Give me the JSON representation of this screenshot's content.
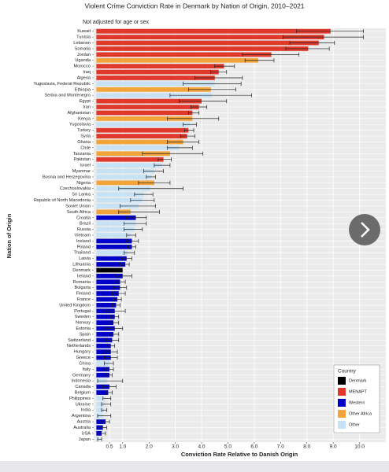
{
  "chart_data": {
    "type": "hbar_error",
    "title": "Violent Crime Conviction Rate in Denmark by Nation of Origin, 2010–2021",
    "subtitle": "Not adjusted for age or sex",
    "x_label": "Conviction Rate Relative to Danish Origin",
    "y_label": "Nation of Origin",
    "categories": [
      "Kuwait",
      "Tunisia",
      "Lebanon",
      "Somalia",
      "Jordan",
      "Uganda",
      "Morocco",
      "Iraq",
      "Algeria",
      "Yugoslavia, Federal Republic",
      "Ethiopia",
      "Serbia and Montenegro",
      "Egypt",
      "Iran",
      "Afghanistan",
      "Kenya",
      "Yugoslavia",
      "Turkey",
      "Syria",
      "Ghana",
      "Chile",
      "Tanzania",
      "Pakistan",
      "Israel",
      "Myanmar",
      "Bosnia and Herzegovina",
      "Nigeria",
      "Czechoslovakia",
      "Sri Lanka",
      "Republic of North Macedonia",
      "Soviet Union",
      "South Africa",
      "Croatia",
      "Brazil",
      "Russia",
      "Vietnam",
      "Iceland",
      "Poland",
      "Thailand",
      "Latvia",
      "Lithuania",
      "Denmark",
      "Ireland",
      "Romania",
      "Bulgaria",
      "Finland",
      "France",
      "United Kingdom",
      "Portugal",
      "Sweden",
      "Norway",
      "Estonia",
      "Spain",
      "Switzerland",
      "Netherlands",
      "Hungary",
      "Greece",
      "China",
      "Italy",
      "Germany",
      "Indonesia",
      "Canada",
      "Belgium",
      "Philippines",
      "Ukraine",
      "India",
      "Argentina",
      "Austria",
      "Australia",
      "USA",
      "Japan"
    ],
    "groups": [
      "MENAPT",
      "MENAPT",
      "MENAPT",
      "MENAPT",
      "MENAPT",
      "Other Africa",
      "MENAPT",
      "MENAPT",
      "MENAPT",
      "Other",
      "Other Africa",
      "Other",
      "MENAPT",
      "MENAPT",
      "MENAPT",
      "Other Africa",
      "Other",
      "MENAPT",
      "MENAPT",
      "Other Africa",
      "Other",
      "Other Africa",
      "MENAPT",
      "Other",
      "Other",
      "Other",
      "Other Africa",
      "Other",
      "Other",
      "Other",
      "Other",
      "Other Africa",
      "Western",
      "Other",
      "Other",
      "Other",
      "Western",
      "Western",
      "Other",
      "Western",
      "Western",
      "Denmark",
      "Western",
      "Western",
      "Western",
      "Western",
      "Western",
      "Western",
      "Western",
      "Western",
      "Western",
      "Western",
      "Western",
      "Western",
      "Western",
      "Western",
      "Western",
      "Other",
      "Western",
      "Western",
      "Other",
      "Western",
      "Western",
      "Other",
      "Other",
      "Other",
      "Other",
      "Western",
      "Western",
      "Western",
      "Other"
    ],
    "values": [
      8.9,
      8.65,
      8.45,
      8.05,
      6.65,
      6.15,
      4.85,
      4.65,
      4.5,
      4.5,
      4.35,
      4.4,
      4.0,
      3.9,
      3.65,
      3.65,
      3.55,
      3.5,
      3.45,
      3.3,
      3.15,
      2.8,
      2.55,
      2.5,
      2.2,
      2.1,
      2.2,
      2.05,
      1.8,
      1.75,
      1.6,
      1.3,
      1.5,
      1.5,
      1.45,
      1.3,
      1.35,
      1.35,
      1.2,
      1.15,
      1.1,
      1.0,
      1.0,
      0.9,
      0.9,
      0.85,
      0.8,
      0.75,
      0.7,
      0.7,
      0.65,
      0.7,
      0.65,
      0.6,
      0.55,
      0.55,
      0.55,
      0.5,
      0.5,
      0.5,
      0.4,
      0.5,
      0.45,
      0.35,
      0.35,
      0.3,
      0.25,
      0.35,
      0.25,
      0.2,
      0.1
    ],
    "error_low": [
      7.6,
      7.1,
      7.35,
      7.2,
      5.55,
      5.65,
      4.5,
      4.35,
      3.75,
      3.3,
      3.5,
      2.8,
      3.15,
      3.6,
      3.5,
      2.7,
      3.3,
      3.35,
      3.2,
      2.7,
      2.7,
      1.75,
      2.35,
      2.2,
      1.8,
      1.9,
      1.6,
      0.85,
      1.45,
      1.3,
      0.9,
      0.85,
      1.15,
      1.05,
      1.05,
      1.15,
      1.15,
      1.2,
      1.05,
      0.95,
      0.9,
      null,
      0.7,
      0.7,
      0.65,
      0.6,
      0.65,
      0.6,
      0.35,
      0.55,
      0.5,
      0.35,
      0.45,
      0.35,
      0.4,
      0.35,
      0.3,
      0.3,
      0.35,
      0.35,
      0.05,
      0.25,
      0.35,
      0.25,
      0.2,
      0.2,
      0.05,
      0.2,
      0.1,
      0.1,
      0.05
    ],
    "error_high": [
      10.15,
      10.15,
      9.05,
      8.85,
      7.7,
      6.75,
      5.25,
      4.95,
      5.55,
      5.5,
      5.3,
      5.9,
      4.95,
      4.2,
      3.9,
      4.65,
      3.8,
      3.7,
      3.75,
      3.9,
      3.65,
      4.05,
      2.85,
      2.8,
      2.55,
      2.25,
      2.8,
      3.3,
      2.15,
      2.2,
      2.25,
      2.4,
      1.9,
      1.9,
      1.75,
      1.5,
      1.6,
      1.5,
      1.45,
      1.35,
      1.25,
      null,
      1.35,
      1.1,
      1.15,
      1.1,
      0.95,
      0.9,
      1.1,
      0.85,
      0.85,
      1.0,
      0.85,
      0.85,
      0.7,
      0.8,
      0.8,
      0.65,
      0.65,
      0.6,
      1.0,
      0.75,
      0.6,
      0.55,
      0.55,
      0.4,
      0.55,
      0.5,
      0.4,
      0.35,
      0.2
    ],
    "xlim": [
      -0.1,
      11.0
    ],
    "xticks": [
      0.5,
      {
        "value": 1,
        "label": "1.0"
      },
      {
        "value": 2,
        "label": "2.0"
      },
      {
        "value": 3,
        "label": "3.0"
      },
      {
        "value": 4,
        "label": "4.0"
      },
      {
        "value": 5,
        "label": "5.0"
      },
      {
        "value": 6,
        "label": "6.0"
      },
      {
        "value": 7,
        "label": "7.0"
      },
      {
        "value": 8,
        "label": "8.0"
      },
      {
        "value": 9,
        "label": "9.0"
      },
      {
        "value": 10,
        "label": "10.0"
      }
    ],
    "grid": true,
    "legend": {
      "title": "Country",
      "position": "bottom-right",
      "entries": [
        {
          "name": "Denmark",
          "color": "#000000"
        },
        {
          "name": "MENAPT",
          "color": "#e0392b"
        },
        {
          "name": "Western",
          "color": "#0000c8"
        },
        {
          "name": "Other Africa",
          "color": "#f2a33a"
        },
        {
          "name": "Other",
          "color": "#c6e2f4"
        }
      ]
    }
  }
}
